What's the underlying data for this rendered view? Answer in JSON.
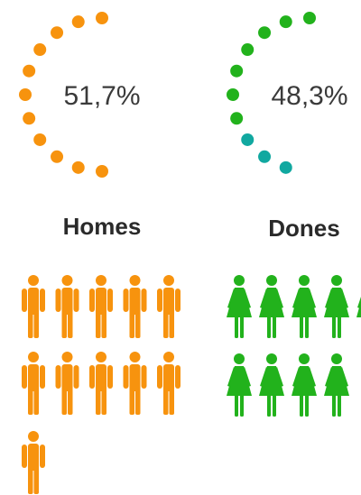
{
  "chart_data": {
    "type": "dot_ring",
    "categories": [
      "Homes",
      "Dones"
    ],
    "values": [
      51.7,
      48.3
    ],
    "value_labels": [
      "51,7%",
      "48,3%"
    ],
    "colors": [
      "#f7930e",
      "#22b21c"
    ],
    "accent_color": "#11a8a0",
    "icons": [
      11,
      9
    ]
  }
}
